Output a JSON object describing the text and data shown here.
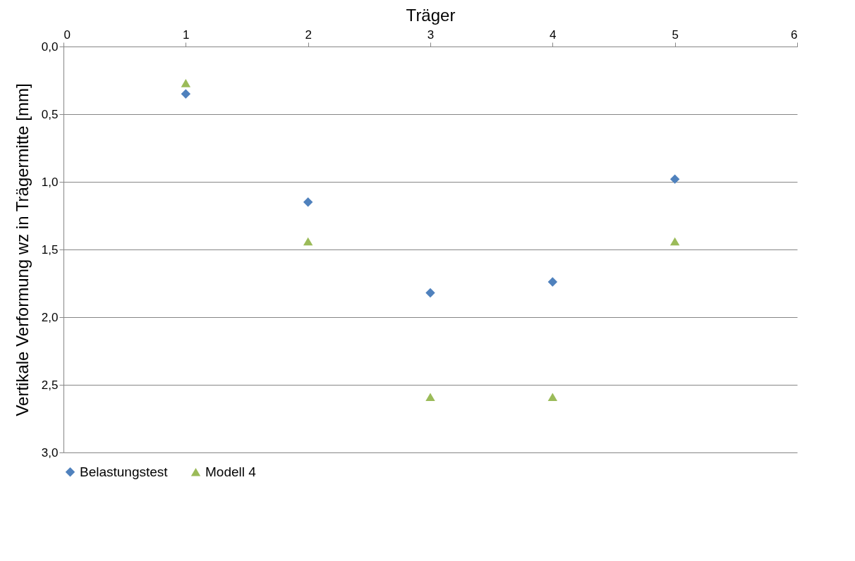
{
  "chart_data": {
    "type": "scatter",
    "xlabel": "Träger",
    "ylabel": "Vertikale Verformung wz in Trägermitte [mm]",
    "xlim": [
      0,
      6
    ],
    "xticks": [
      0,
      1,
      2,
      3,
      4,
      5,
      6
    ],
    "ylim": [
      3.0,
      0.0
    ],
    "yticks": [
      {
        "value": 0,
        "label": "0,0"
      },
      {
        "value": 0.5,
        "label": "0,5"
      },
      {
        "value": 1,
        "label": "1,0"
      },
      {
        "value": 1.5,
        "label": "1,5"
      },
      {
        "value": 2,
        "label": "2,0"
      },
      {
        "value": 2.5,
        "label": "2,5"
      },
      {
        "value": 3,
        "label": "3,0"
      }
    ],
    "grid": "y",
    "legend": "bottom",
    "series": [
      {
        "name": "Belastungstest",
        "color": "#4f81bd",
        "marker": "diamond",
        "x": [
          1,
          2,
          3,
          4,
          5
        ],
        "values": [
          0.35,
          1.15,
          1.82,
          1.74,
          0.98
        ]
      },
      {
        "name": "Modell 4",
        "color": "#9bbb59",
        "marker": "triangle",
        "x": [
          1,
          2,
          3,
          4,
          5
        ],
        "values": [
          0.27,
          1.44,
          2.59,
          2.59,
          1.44
        ]
      }
    ]
  }
}
